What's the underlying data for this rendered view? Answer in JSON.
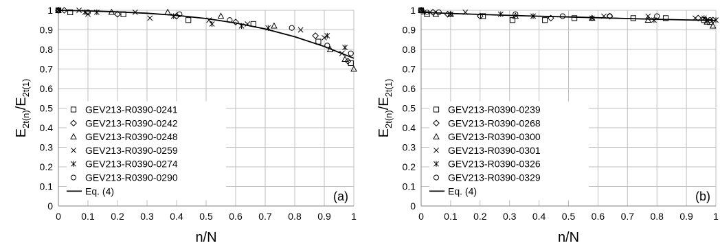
{
  "chart_data": [
    {
      "type": "scatter",
      "panel_label": "(a)",
      "xlabel": "n/N",
      "ylabel": {
        "base": "E",
        "sub1": "2t(n)",
        "mid": "/E",
        "sub2": "2t(1)"
      },
      "xlim": [
        0,
        1
      ],
      "ylim": [
        0,
        1
      ],
      "x_ticks": [
        "0",
        "0.1",
        "0.2",
        "0.3",
        "0.4",
        "0.5",
        "0.6",
        "0.7",
        "0.8",
        "0.9",
        "1"
      ],
      "y_ticks": [
        "0",
        "0.1",
        "0.2",
        "0.3",
        "0.4",
        "0.5",
        "0.6",
        "0.7",
        "0.8",
        "0.9",
        "1"
      ],
      "grid": true,
      "legend_position": "left",
      "series": [
        {
          "name": "GEV213-R0390-0241",
          "marker": "square",
          "points": [
            [
              0,
              1
            ],
            [
              0.04,
              0.99
            ],
            [
              0.22,
              0.98
            ],
            [
              0.44,
              0.95
            ],
            [
              0.66,
              0.93
            ],
            [
              0.88,
              0.84
            ],
            [
              0.99,
              0.73
            ]
          ]
        },
        {
          "name": "GEV213-R0390-0242",
          "marker": "diamond",
          "points": [
            [
              0,
              1
            ],
            [
              0.02,
              1
            ],
            [
              0.2,
              0.98
            ],
            [
              0.4,
              0.97
            ],
            [
              0.6,
              0.94
            ],
            [
              0.87,
              0.87
            ],
            [
              0.98,
              0.74
            ]
          ]
        },
        {
          "name": "GEV213-R0390-0248",
          "marker": "triangle",
          "points": [
            [
              0,
              1
            ],
            [
              0.18,
              0.99
            ],
            [
              0.37,
              0.99
            ],
            [
              0.55,
              0.97
            ],
            [
              0.73,
              0.92
            ],
            [
              0.92,
              0.8
            ],
            [
              0.97,
              0.75
            ],
            [
              1,
              0.7
            ]
          ]
        },
        {
          "name": "GEV213-R0390-0259",
          "marker": "x",
          "points": [
            [
              0,
              1
            ],
            [
              0.07,
              1
            ],
            [
              0.1,
              0.98
            ],
            [
              0.26,
              0.99
            ],
            [
              0.31,
              0.96
            ],
            [
              0.51,
              0.95
            ],
            [
              0.64,
              0.93
            ],
            [
              0.82,
              0.9
            ],
            [
              0.9,
              0.86
            ],
            [
              0.96,
              0.78
            ]
          ]
        },
        {
          "name": "GEV213-R0390-0274",
          "marker": "asterisk",
          "points": [
            [
              0,
              1
            ],
            [
              0.09,
              0.99
            ],
            [
              0.13,
              0.99
            ],
            [
              0.39,
              0.97
            ],
            [
              0.52,
              0.93
            ],
            [
              0.62,
              0.92
            ],
            [
              0.71,
              0.91
            ],
            [
              0.91,
              0.87
            ],
            [
              0.97,
              0.81
            ]
          ]
        },
        {
          "name": "GEV213-R0390-0290",
          "marker": "circle",
          "points": [
            [
              0,
              1
            ],
            [
              0.1,
              0.99
            ],
            [
              0.41,
              0.98
            ],
            [
              0.58,
              0.95
            ],
            [
              0.79,
              0.91
            ],
            [
              0.91,
              0.82
            ],
            [
              0.99,
              0.78
            ]
          ]
        }
      ],
      "fit": {
        "name": "Eq. (4)",
        "x": [
          0,
          0.1,
          0.2,
          0.3,
          0.4,
          0.5,
          0.6,
          0.7,
          0.8,
          0.9,
          0.95,
          1
        ],
        "y": [
          1,
          0.997,
          0.992,
          0.985,
          0.974,
          0.958,
          0.935,
          0.905,
          0.865,
          0.815,
          0.785,
          0.755
        ]
      }
    },
    {
      "type": "scatter",
      "panel_label": "(b)",
      "xlabel": "n/N",
      "ylabel": {
        "base": "E",
        "sub1": "2t(n)",
        "mid": "/E",
        "sub2": "2t(1)"
      },
      "xlim": [
        0,
        1
      ],
      "ylim": [
        0,
        1
      ],
      "x_ticks": [
        "0",
        "0.1",
        "0.2",
        "0.3",
        "0.4",
        "0.5",
        "0.6",
        "0.7",
        "0.8",
        "0.9",
        "1"
      ],
      "y_ticks": [
        "0",
        "0.1",
        "0.2",
        "0.3",
        "0.4",
        "0.5",
        "0.6",
        "0.7",
        "0.8",
        "0.9",
        "1"
      ],
      "grid": true,
      "legend_position": "left",
      "series": [
        {
          "name": "GEV213-R0390-0239",
          "marker": "square",
          "points": [
            [
              0,
              1
            ],
            [
              0.02,
              0.98
            ],
            [
              0.21,
              0.97
            ],
            [
              0.31,
              0.95
            ],
            [
              0.42,
              0.95
            ],
            [
              0.52,
              0.96
            ],
            [
              0.72,
              0.96
            ],
            [
              0.83,
              0.96
            ],
            [
              0.96,
              0.95
            ],
            [
              0.98,
              0.94
            ]
          ]
        },
        {
          "name": "GEV213-R0390-0268",
          "marker": "diamond",
          "points": [
            [
              0,
              1
            ],
            [
              0.04,
              0.99
            ],
            [
              0.09,
              0.98
            ],
            [
              0.2,
              0.97
            ],
            [
              0.44,
              0.96
            ],
            [
              0.64,
              0.97
            ],
            [
              0.94,
              0.96
            ],
            [
              0.99,
              0.95
            ]
          ]
        },
        {
          "name": "GEV213-R0390-0300",
          "marker": "triangle",
          "points": [
            [
              0,
              1
            ],
            [
              0.05,
              0.98
            ],
            [
              0.1,
              0.98
            ],
            [
              0.32,
              0.97
            ],
            [
              0.58,
              0.96
            ],
            [
              0.77,
              0.95
            ],
            [
              0.97,
              0.94
            ],
            [
              0.99,
              0.92
            ]
          ]
        },
        {
          "name": "GEV213-R0390-0301",
          "marker": "x",
          "points": [
            [
              0,
              1
            ],
            [
              0.03,
              0.99
            ],
            [
              0.15,
              0.99
            ],
            [
              0.38,
              0.97
            ],
            [
              0.62,
              0.97
            ],
            [
              0.77,
              0.97
            ],
            [
              0.93,
              0.96
            ],
            [
              0.97,
              0.95
            ]
          ]
        },
        {
          "name": "GEV213-R0390-0326",
          "marker": "asterisk",
          "points": [
            [
              0,
              1
            ],
            [
              0.01,
              0.99
            ],
            [
              0.1,
              0.98
            ],
            [
              0.27,
              0.98
            ],
            [
              0.38,
              0.97
            ],
            [
              0.58,
              0.96
            ],
            [
              0.79,
              0.95
            ],
            [
              0.96,
              0.96
            ],
            [
              1,
              0.95
            ]
          ]
        },
        {
          "name": "GEV213-R0390-0329",
          "marker": "circle",
          "points": [
            [
              0,
              1
            ],
            [
              0.06,
              0.99
            ],
            [
              0.32,
              0.98
            ],
            [
              0.48,
              0.97
            ],
            [
              0.64,
              0.97
            ],
            [
              0.8,
              0.97
            ],
            [
              0.98,
              0.95
            ]
          ]
        }
      ],
      "fit": {
        "name": "Eq. (4)",
        "x": [
          0,
          0.1,
          0.2,
          0.3,
          0.4,
          0.5,
          0.6,
          0.7,
          0.8,
          0.9,
          1
        ],
        "y": [
          0.99,
          0.984,
          0.979,
          0.974,
          0.97,
          0.966,
          0.962,
          0.958,
          0.954,
          0.951,
          0.948
        ]
      }
    }
  ]
}
